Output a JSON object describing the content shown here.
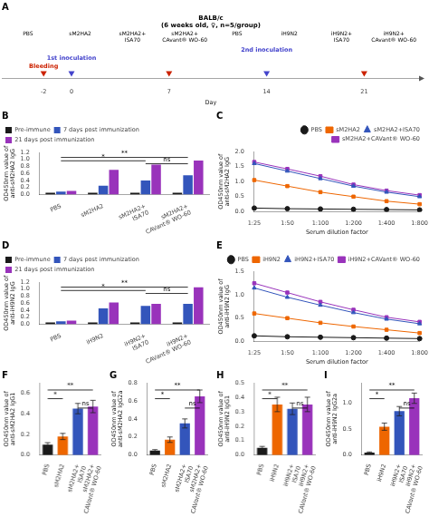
{
  "chart_data": [
    {
      "type": "timeline",
      "title": "A",
      "subtitle": "BALB/c\n(6 weeks old, ♀, n=5/group)",
      "annotations": [
        "PBS",
        "sM2HA2",
        "sM2HA2+\nISA70",
        "sM2HA2+\nCAvant® WO-60",
        "PBS",
        "iH9N2",
        "iH9N2+\nISA70",
        "iH9N2+\nCAvant® WO-60"
      ],
      "xlabel": "Day",
      "xlim": [
        -5,
        25
      ],
      "xticks": [
        -2,
        0,
        7,
        14,
        21
      ],
      "tick_labels": "x",
      "grid": false,
      "series": [
        {
          "name": "Bleeding",
          "x": [
            -2,
            7,
            21
          ],
          "color": "#cc2200",
          "marker": "triangle_down"
        },
        {
          "name": "1st inoculation",
          "x": [
            0
          ],
          "color": "#4444cc",
          "marker": "triangle_down"
        },
        {
          "name": "2nd inoculation",
          "x": [
            14
          ],
          "color": "#4444cc",
          "marker": "triangle_down"
        }
      ]
    },
    {
      "type": "bar",
      "title": "B",
      "categories": [
        "PBS",
        "sM2HA2",
        "sM2HA2+\nISA70",
        "sM2HA2+\nCAVant® WO-60"
      ],
      "series": [
        {
          "name": "Pre-immune",
          "color": "#1a1a1a",
          "values": [
            0.05,
            0.05,
            0.05,
            0.05
          ]
        },
        {
          "name": "7 days post immunization",
          "color": "#3355bb",
          "values": [
            0.08,
            0.25,
            0.4,
            0.55
          ]
        },
        {
          "name": "21 days post immunization",
          "color": "#9933bb",
          "values": [
            0.1,
            0.7,
            0.85,
            0.97
          ]
        }
      ],
      "ylabel": "OD450nm value of\nanti-sM2HA2 IgG",
      "ylim": [
        0,
        1.2
      ],
      "yticks": [
        {
          "value": 0,
          "label": "0.0"
        },
        0.2,
        0.4,
        0.6,
        0.8,
        {
          "value": 1,
          "label": "1.0"
        },
        1.2
      ],
      "legend": "upper left",
      "grid": false,
      "annotations": [
        {
          "text": "**",
          "from": "PBS",
          "to": "sM2HA2+\nCAVant® WO-60",
          "y": 1.056
        },
        {
          "text": "*",
          "from": "PBS",
          "to": "sM2HA2+\nISA70",
          "y": 0.96
        },
        {
          "text": "ns",
          "from": "sM2HA2+\nISA70",
          "to": "sM2HA2+\nCAVant® WO-60",
          "y": 0.876
        }
      ]
    },
    {
      "type": "line",
      "title": "C",
      "categories": [
        "1:25",
        "1:50",
        "1:100",
        "1:200",
        "1:400",
        "1:800"
      ],
      "series": [
        {
          "name": "PBS",
          "color": "#1a1a1a",
          "marker": "circle",
          "values": [
            0.12,
            0.1,
            0.09,
            0.08,
            0.07,
            0.06
          ]
        },
        {
          "name": "sM2HA2",
          "color": "#ee6600",
          "marker": "square",
          "values": [
            1.05,
            0.85,
            0.65,
            0.5,
            0.35,
            0.25
          ]
        },
        {
          "name": "sM2HA2+ISA70",
          "color": "#3355bb",
          "marker": "triangle",
          "values": [
            1.6,
            1.35,
            1.1,
            0.85,
            0.65,
            0.5
          ]
        },
        {
          "name": "sM2HA2+CAVant® WO-60",
          "color": "#9933bb",
          "marker": "square",
          "values": [
            1.65,
            1.42,
            1.18,
            0.9,
            0.7,
            0.55
          ]
        }
      ],
      "xlabel": "Serum dilution factor",
      "ylabel": "OD450nm value of\nanti-sM2HA2 IgG",
      "ylim": [
        0,
        2.0
      ],
      "yticks": [
        {
          "value": 0,
          "label": "0.0"
        },
        0.5,
        {
          "value": 1,
          "label": "1.0"
        },
        1.5,
        {
          "value": 2,
          "label": "2.0"
        }
      ],
      "legend": "upper right",
      "grid": false
    },
    {
      "type": "bar",
      "title": "D",
      "categories": [
        "PBS",
        "iH9N2",
        "iH9N2+\nISA70",
        "iH9N2+\nCAVant® WO-60"
      ],
      "series": [
        {
          "name": "Pre-immune",
          "color": "#1a1a1a",
          "values": [
            0.05,
            0.05,
            0.05,
            0.05
          ]
        },
        {
          "name": "7 days post immunization",
          "color": "#3355bb",
          "values": [
            0.08,
            0.45,
            0.52,
            0.58
          ]
        },
        {
          "name": "21 days post immunization",
          "color": "#9933bb",
          "values": [
            0.1,
            0.62,
            0.58,
            1.05
          ]
        }
      ],
      "ylabel": "OD450nm value of\nanti-iH9N2 IgG",
      "ylim": [
        0,
        1.2
      ],
      "yticks": [
        {
          "value": 0,
          "label": "0.0"
        },
        0.2,
        0.4,
        0.6,
        0.8,
        {
          "value": 1,
          "label": "1.0"
        },
        1.2
      ],
      "legend": "upper left",
      "grid": false,
      "annotations": [
        {
          "text": "**",
          "from": "PBS",
          "to": "iH9N2+\nCAVant® WO-60",
          "y": 1.056
        },
        {
          "text": "*",
          "from": "PBS",
          "to": "iH9N2+\nISA70",
          "y": 0.96
        },
        {
          "text": "ns",
          "from": "iH9N2+\nISA70",
          "to": "iH9N2+\nCAVant® WO-60",
          "y": 0.876
        }
      ]
    },
    {
      "type": "line",
      "title": "E",
      "categories": [
        "1:25",
        "1:50",
        "1:100",
        "1:200",
        "1:400",
        "1:800"
      ],
      "series": [
        {
          "name": "PBS",
          "color": "#1a1a1a",
          "marker": "circle",
          "values": [
            0.12,
            0.1,
            0.09,
            0.08,
            0.07,
            0.06
          ]
        },
        {
          "name": "iH9N2",
          "color": "#ee6600",
          "marker": "square",
          "values": [
            0.6,
            0.5,
            0.4,
            0.32,
            0.25,
            0.18
          ]
        },
        {
          "name": "iH9N2+ISA70",
          "color": "#3355bb",
          "marker": "triangle",
          "values": [
            1.15,
            0.95,
            0.78,
            0.62,
            0.48,
            0.38
          ]
        },
        {
          "name": "iH9N2+CAVant® WO-60",
          "color": "#9933bb",
          "marker": "square",
          "values": [
            1.25,
            1.05,
            0.85,
            0.68,
            0.52,
            0.42
          ]
        }
      ],
      "xlabel": "Serum dilution factor",
      "ylabel": "OD450nm value of\nanti-iH9N2 IgG",
      "ylim": [
        0,
        1.5
      ],
      "yticks": [
        {
          "value": 0,
          "label": "0.0"
        },
        0.5,
        {
          "value": 1,
          "label": "1.0"
        },
        1.5
      ],
      "legend": "upper right",
      "grid": false
    },
    {
      "type": "bar",
      "title": "F",
      "categories": [
        "PBS",
        "sM2HA2",
        "sM2HA2+\nISA70",
        "sM2HA2+\nCAVant® WO-60"
      ],
      "values": [
        0.1,
        0.18,
        0.45,
        0.47
      ],
      "errors": [
        0.02,
        0.03,
        0.05,
        0.06
      ],
      "colors": [
        "#1a1a1a",
        "#ee6600",
        "#3355bb",
        "#9933bb"
      ],
      "ylabel": "OD450nm value of\nanti-sM2HA2 IgG1",
      "ylim": [
        0,
        0.7
      ],
      "yticks": [
        {
          "value": 0,
          "label": "0.0"
        },
        0.2,
        0.4,
        0.6
      ],
      "grid": false,
      "annotations": [
        {
          "text": "**",
          "from": "PBS",
          "to": "sM2HA2+\nCAVant® WO-60",
          "y": 0.63
        },
        {
          "text": "*",
          "from": "PBS",
          "to": "sM2HA2",
          "y": 0.546
        },
        {
          "text": "ns",
          "from": "sM2HA2+\nISA70",
          "to": "sM2HA2+\nCAVant® WO-60",
          "y": 0.455
        }
      ]
    },
    {
      "type": "bar",
      "title": "G",
      "categories": [
        "PBS",
        "sM2HA2",
        "sM2HA2+\nISA70",
        "sM2HA2+\nCAVant® WO-60"
      ],
      "values": [
        0.05,
        0.17,
        0.35,
        0.65
      ],
      "errors": [
        0.01,
        0.03,
        0.05,
        0.07
      ],
      "colors": [
        "#1a1a1a",
        "#ee6600",
        "#3355bb",
        "#9933bb"
      ],
      "ylabel": "OD450nm value of\nanti-sM2HA2 IgG2a",
      "ylim": [
        0,
        0.8
      ],
      "yticks": [
        {
          "value": 0,
          "label": "0.0"
        },
        0.2,
        0.4,
        0.6,
        0.8
      ],
      "grid": false,
      "annotations": [
        {
          "text": "**",
          "from": "PBS",
          "to": "sM2HA2+\nCAVant® WO-60",
          "y": 0.72
        },
        {
          "text": "*",
          "from": "PBS",
          "to": "sM2HA2",
          "y": 0.624
        },
        {
          "text": "ns",
          "from": "sM2HA2+\nISA70",
          "to": "sM2HA2+\nCAVant® WO-60",
          "y": 0.52
        }
      ]
    },
    {
      "type": "bar",
      "title": "H",
      "categories": [
        "PBS",
        "iH9N2",
        "iH9N2+\nISA70",
        "iH9N2+\nCAVant® WO-60"
      ],
      "values": [
        0.05,
        0.35,
        0.32,
        0.35
      ],
      "errors": [
        0.01,
        0.05,
        0.04,
        0.05
      ],
      "colors": [
        "#1a1a1a",
        "#ee6600",
        "#3355bb",
        "#9933bb"
      ],
      "ylabel": "OD450nm value of\nanti-iH9N2 IgG1",
      "ylim": [
        0,
        0.5
      ],
      "yticks": [
        {
          "value": 0,
          "label": "0.0"
        },
        0.1,
        0.2,
        0.3,
        0.4,
        0.5
      ],
      "grid": false,
      "annotations": [
        {
          "text": "**",
          "from": "PBS",
          "to": "iH9N2+\nCAVant® WO-60",
          "y": 0.45
        },
        {
          "text": "*",
          "from": "PBS",
          "to": "iH9N2",
          "y": 0.39
        },
        {
          "text": "ns",
          "from": "iH9N2+\nISA70",
          "to": "iH9N2+\nCAVant® WO-60",
          "y": 0.325
        }
      ]
    },
    {
      "type": "bar",
      "title": "I",
      "categories": [
        "PBS",
        "iH9N2",
        "iH9N2+\nISA70",
        "iH9N2+\nCAVant® WO-60"
      ],
      "values": [
        0.05,
        0.55,
        0.85,
        1.1
      ],
      "errors": [
        0.01,
        0.07,
        0.09,
        0.1
      ],
      "colors": [
        "#1a1a1a",
        "#ee6600",
        "#3355bb",
        "#9933bb"
      ],
      "ylabel": "OD450nm value of\nanti-iH9N2 IgG2a",
      "ylim": [
        0,
        1.4
      ],
      "yticks": [
        {
          "value": 0,
          "label": "0.0"
        },
        0.5,
        {
          "value": 1,
          "label": "1.0"
        }
      ],
      "grid": false,
      "annotations": [
        {
          "text": "**",
          "from": "PBS",
          "to": "iH9N2+\nCAVant® WO-60",
          "y": 1.26
        },
        {
          "text": "*",
          "from": "PBS",
          "to": "iH9N2",
          "y": 1.092
        },
        {
          "text": "ns",
          "from": "iH9N2+\nISA70",
          "to": "iH9N2+\nCAVant® WO-60",
          "y": 0.91
        }
      ]
    }
  ]
}
